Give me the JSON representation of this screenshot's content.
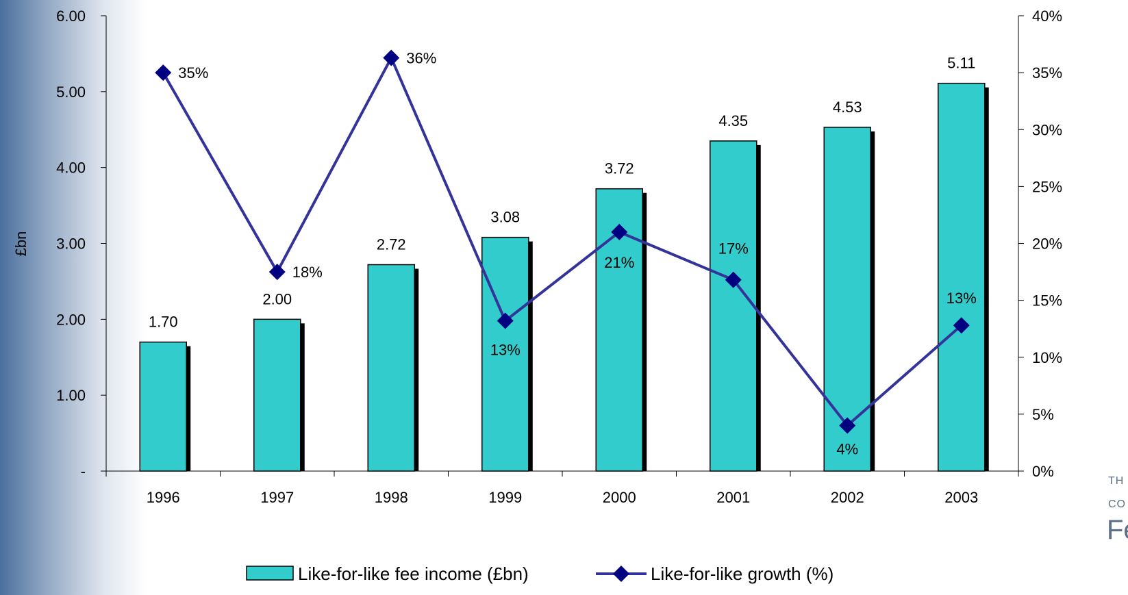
{
  "chart_data": {
    "type": "bar+line",
    "categories": [
      "1996",
      "1997",
      "1998",
      "1999",
      "2000",
      "2001",
      "2002",
      "2003"
    ],
    "series": [
      {
        "name": "Like-for-like fee income (£bn)",
        "type": "bar",
        "axis": "left",
        "values": [
          1.7,
          2.0,
          2.72,
          3.08,
          3.72,
          4.35,
          4.53,
          5.11
        ],
        "labels": [
          "1.70",
          "2.00",
          "2.72",
          "3.08",
          "3.72",
          "4.35",
          "4.53",
          "5.11"
        ]
      },
      {
        "name": "Like-for-like growth (%)",
        "type": "line",
        "axis": "right",
        "values": [
          35,
          18,
          36,
          13,
          21,
          17,
          4,
          13
        ],
        "labels": [
          "35%",
          "18%",
          "36%",
          "13%",
          "21%",
          "17%",
          "4%",
          "13%"
        ],
        "plot_values": [
          35,
          17.5,
          36.3,
          13.2,
          21,
          16.8,
          4,
          12.8
        ]
      }
    ],
    "ylabel": "£bn",
    "y_left": {
      "range": [
        0,
        6
      ],
      "ticks": [
        0,
        1,
        2,
        3,
        4,
        5,
        6
      ],
      "tick_labels": [
        "-",
        "1.00",
        "2.00",
        "3.00",
        "4.00",
        "5.00",
        "6.00"
      ]
    },
    "y_right": {
      "range": [
        0,
        40
      ],
      "ticks": [
        0,
        5,
        10,
        15,
        20,
        25,
        30,
        35,
        40
      ],
      "tick_labels": [
        "0%",
        "5%",
        "10%",
        "15%",
        "20%",
        "25%",
        "30%",
        "35%",
        "40%"
      ]
    },
    "legend_position": "bottom",
    "grid": false,
    "colors": {
      "bar_fill": "#33cccc",
      "bar_shadow": "#000000",
      "line": "#333399",
      "marker": "#000080"
    }
  },
  "logo": {
    "line1": "TH",
    "line2": "CO",
    "line3": "Fe"
  }
}
